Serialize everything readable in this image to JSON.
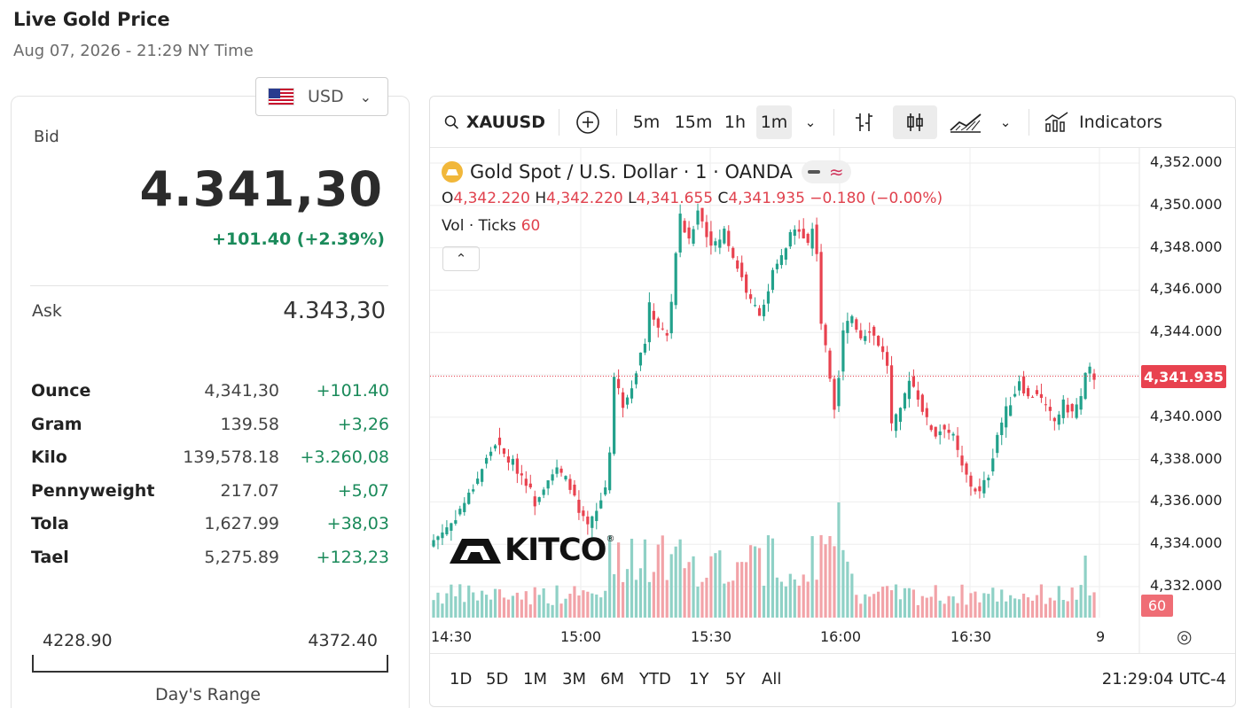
{
  "page": {
    "title": "Live Gold Price",
    "subtitle": "Aug 07, 2026 - 21:29 NY Time"
  },
  "currency": {
    "code": "USD",
    "icon": "us-flag-icon"
  },
  "quote": {
    "bid_label": "Bid",
    "bid": "4.341,30",
    "change": "+101.40 (+2.39%)",
    "ask_label": "Ask",
    "ask": "4.343,30"
  },
  "units": [
    {
      "name": "Ounce",
      "price": "4,341,30",
      "change": "+101.40"
    },
    {
      "name": "Gram",
      "price": "139.58",
      "change": "+3,26"
    },
    {
      "name": "Kilo",
      "price": "139,578.18",
      "change": "+3.260,08"
    },
    {
      "name": "Pennyweight",
      "price": "217.07",
      "change": "+5,07"
    },
    {
      "name": "Tola",
      "price": "1,627.99",
      "change": "+38,03"
    },
    {
      "name": "Tael",
      "price": "5,275.89",
      "change": "+123,23"
    }
  ],
  "day_range": {
    "low": "4228.90",
    "high": "4372.40",
    "label": "Day's Range"
  },
  "chart_widget": {
    "symbol": "XAUUSD",
    "intervals": [
      "5m",
      "15m",
      "1h",
      "1m"
    ],
    "active_interval": "1m",
    "indicators_label": "Indicators",
    "legend_title": "Gold Spot  /  U.S. Dollar · 1 · OANDA",
    "ohlc": {
      "o_label": "O",
      "o": "4,342.220",
      "h_label": "H",
      "h": "4,342.220",
      "l_label": "L",
      "l": "4,341.655",
      "c_label": "C",
      "c": "4,341.935",
      "change": "−0.180 (−0.00%)"
    },
    "volume_label": "Vol · Ticks",
    "volume_value": "60",
    "last_price_tag": "4,341.935",
    "volume_tag": "60",
    "ranges": [
      "1D",
      "5D",
      "1M",
      "3M",
      "6M",
      "YTD",
      "1Y",
      "5Y",
      "All"
    ],
    "clock": "21:29:04 UTC-4",
    "watermark": "KITCO",
    "colors": {
      "up": "#22a18b",
      "down": "#e8424f",
      "up_vol": "#8fd1c6",
      "down_vol": "#f2a3a8"
    }
  },
  "chart_data": {
    "type": "candlestick",
    "y_tick_labels": [
      "4,352.000",
      "4,350.000",
      "4,348.000",
      "4,346.000",
      "4,344.000",
      "4,340.000",
      "4,338.000",
      "4,336.000",
      "4,334.000",
      "4,332.000"
    ],
    "x_tick_labels": [
      "14:30",
      "15:00",
      "15:30",
      "16:00",
      "16:30",
      "9"
    ],
    "ylim": [
      4331,
      4352.5
    ],
    "grid": true,
    "close_path": [
      [
        0,
        4334.2
      ],
      [
        4,
        4335.0
      ],
      [
        8,
        4336.3
      ],
      [
        12,
        4338.0
      ],
      [
        14,
        4338.8
      ],
      [
        16,
        4338.2
      ],
      [
        18,
        4337.8
      ],
      [
        21,
        4337.0
      ],
      [
        23,
        4336.0
      ],
      [
        26,
        4337.2
      ],
      [
        28,
        4337.5
      ],
      [
        31,
        4336.8
      ],
      [
        33,
        4335.4
      ],
      [
        35,
        4334.8
      ],
      [
        37,
        4335.5
      ],
      [
        39,
        4336.7
      ],
      [
        40,
        4338.5
      ],
      [
        41,
        4341.9
      ],
      [
        43,
        4340.6
      ],
      [
        45,
        4341.6
      ],
      [
        48,
        4343.6
      ],
      [
        49,
        4345.2
      ],
      [
        51,
        4344.3
      ],
      [
        53,
        4343.8
      ],
      [
        54,
        4345.5
      ],
      [
        55,
        4347.8
      ],
      [
        56,
        4349.4
      ],
      [
        58,
        4348.2
      ],
      [
        60,
        4349.9
      ],
      [
        62,
        4348.6
      ],
      [
        64,
        4348.1
      ],
      [
        66,
        4348.8
      ],
      [
        68,
        4347.6
      ],
      [
        70,
        4346.6
      ],
      [
        72,
        4345.4
      ],
      [
        74,
        4345.0
      ],
      [
        76,
        4345.8
      ],
      [
        77,
        4346.8
      ],
      [
        79,
        4347.5
      ],
      [
        81,
        4348.5
      ],
      [
        83,
        4349.0
      ],
      [
        85,
        4348.2
      ],
      [
        86,
        4348.9
      ],
      [
        87,
        4347.8
      ],
      [
        88,
        4344.5
      ],
      [
        89,
        4343.2
      ],
      [
        91,
        4340.6
      ],
      [
        92,
        4342.0
      ],
      [
        93,
        4344.2
      ],
      [
        95,
        4344.8
      ],
      [
        97,
        4343.8
      ],
      [
        99,
        4344.2
      ],
      [
        101,
        4343.5
      ],
      [
        103,
        4342.5
      ],
      [
        104,
        4339.6
      ],
      [
        106,
        4340.2
      ],
      [
        108,
        4341.9
      ],
      [
        110,
        4341.0
      ],
      [
        112,
        4339.8
      ],
      [
        114,
        4339.2
      ],
      [
        116,
        4339.6
      ],
      [
        118,
        4339.0
      ],
      [
        120,
        4337.6
      ],
      [
        122,
        4336.8
      ],
      [
        124,
        4336.4
      ],
      [
        126,
        4337.3
      ],
      [
        128,
        4339.2
      ],
      [
        130,
        4340.3
      ],
      [
        132,
        4341.2
      ],
      [
        133,
        4341.8
      ],
      [
        135,
        4340.9
      ],
      [
        137,
        4341.2
      ],
      [
        139,
        4340.4
      ],
      [
        141,
        4339.8
      ],
      [
        143,
        4340.6
      ],
      [
        145,
        4340.2
      ],
      [
        147,
        4340.9
      ],
      [
        148,
        4341.9
      ],
      [
        149,
        4342.2
      ],
      [
        150,
        4341.9
      ]
    ]
  }
}
